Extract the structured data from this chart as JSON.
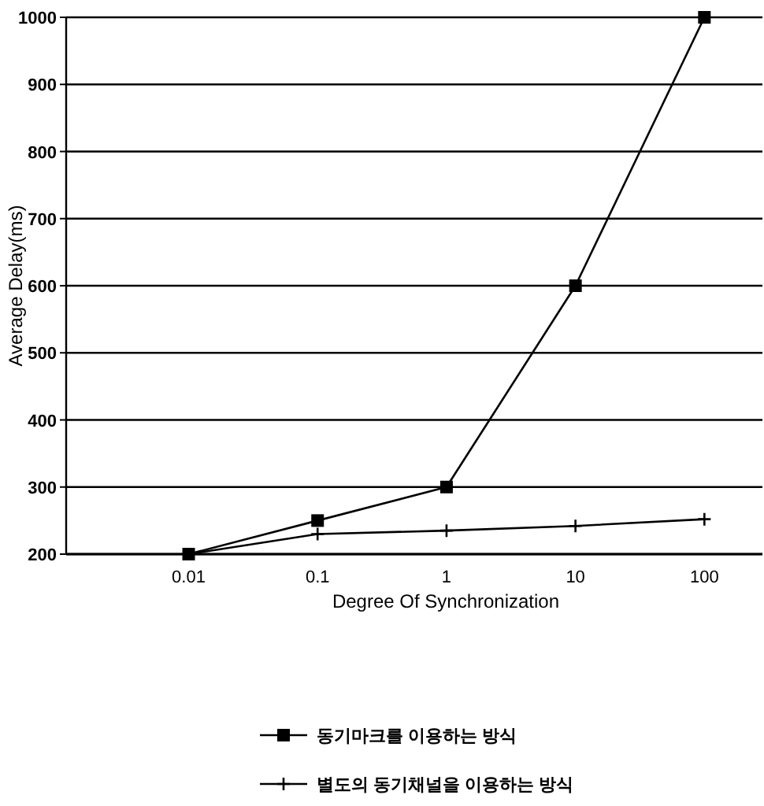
{
  "chart_data": {
    "type": "line",
    "xlabel": "Degree Of Synchronization",
    "ylabel": "Average Delay(ms)",
    "categories": [
      "0.01",
      "0.1",
      "1",
      "10",
      "100"
    ],
    "series": [
      {
        "name": "동기마크를 이용하는 방식",
        "color": "#000000",
        "marker": "square",
        "values": [
          200,
          250,
          300,
          600,
          1000
        ]
      },
      {
        "name": "별도의 동기채널을 이용하는 방식",
        "color": "#000000",
        "marker": "cross",
        "values": [
          200,
          230,
          235,
          242,
          252
        ]
      }
    ],
    "ylim": [
      200,
      1000
    ],
    "yticks": [
      200,
      300,
      400,
      500,
      600,
      700,
      800,
      900,
      1000
    ],
    "grid": "y",
    "legend": "bottom",
    "line_style": "solid"
  }
}
